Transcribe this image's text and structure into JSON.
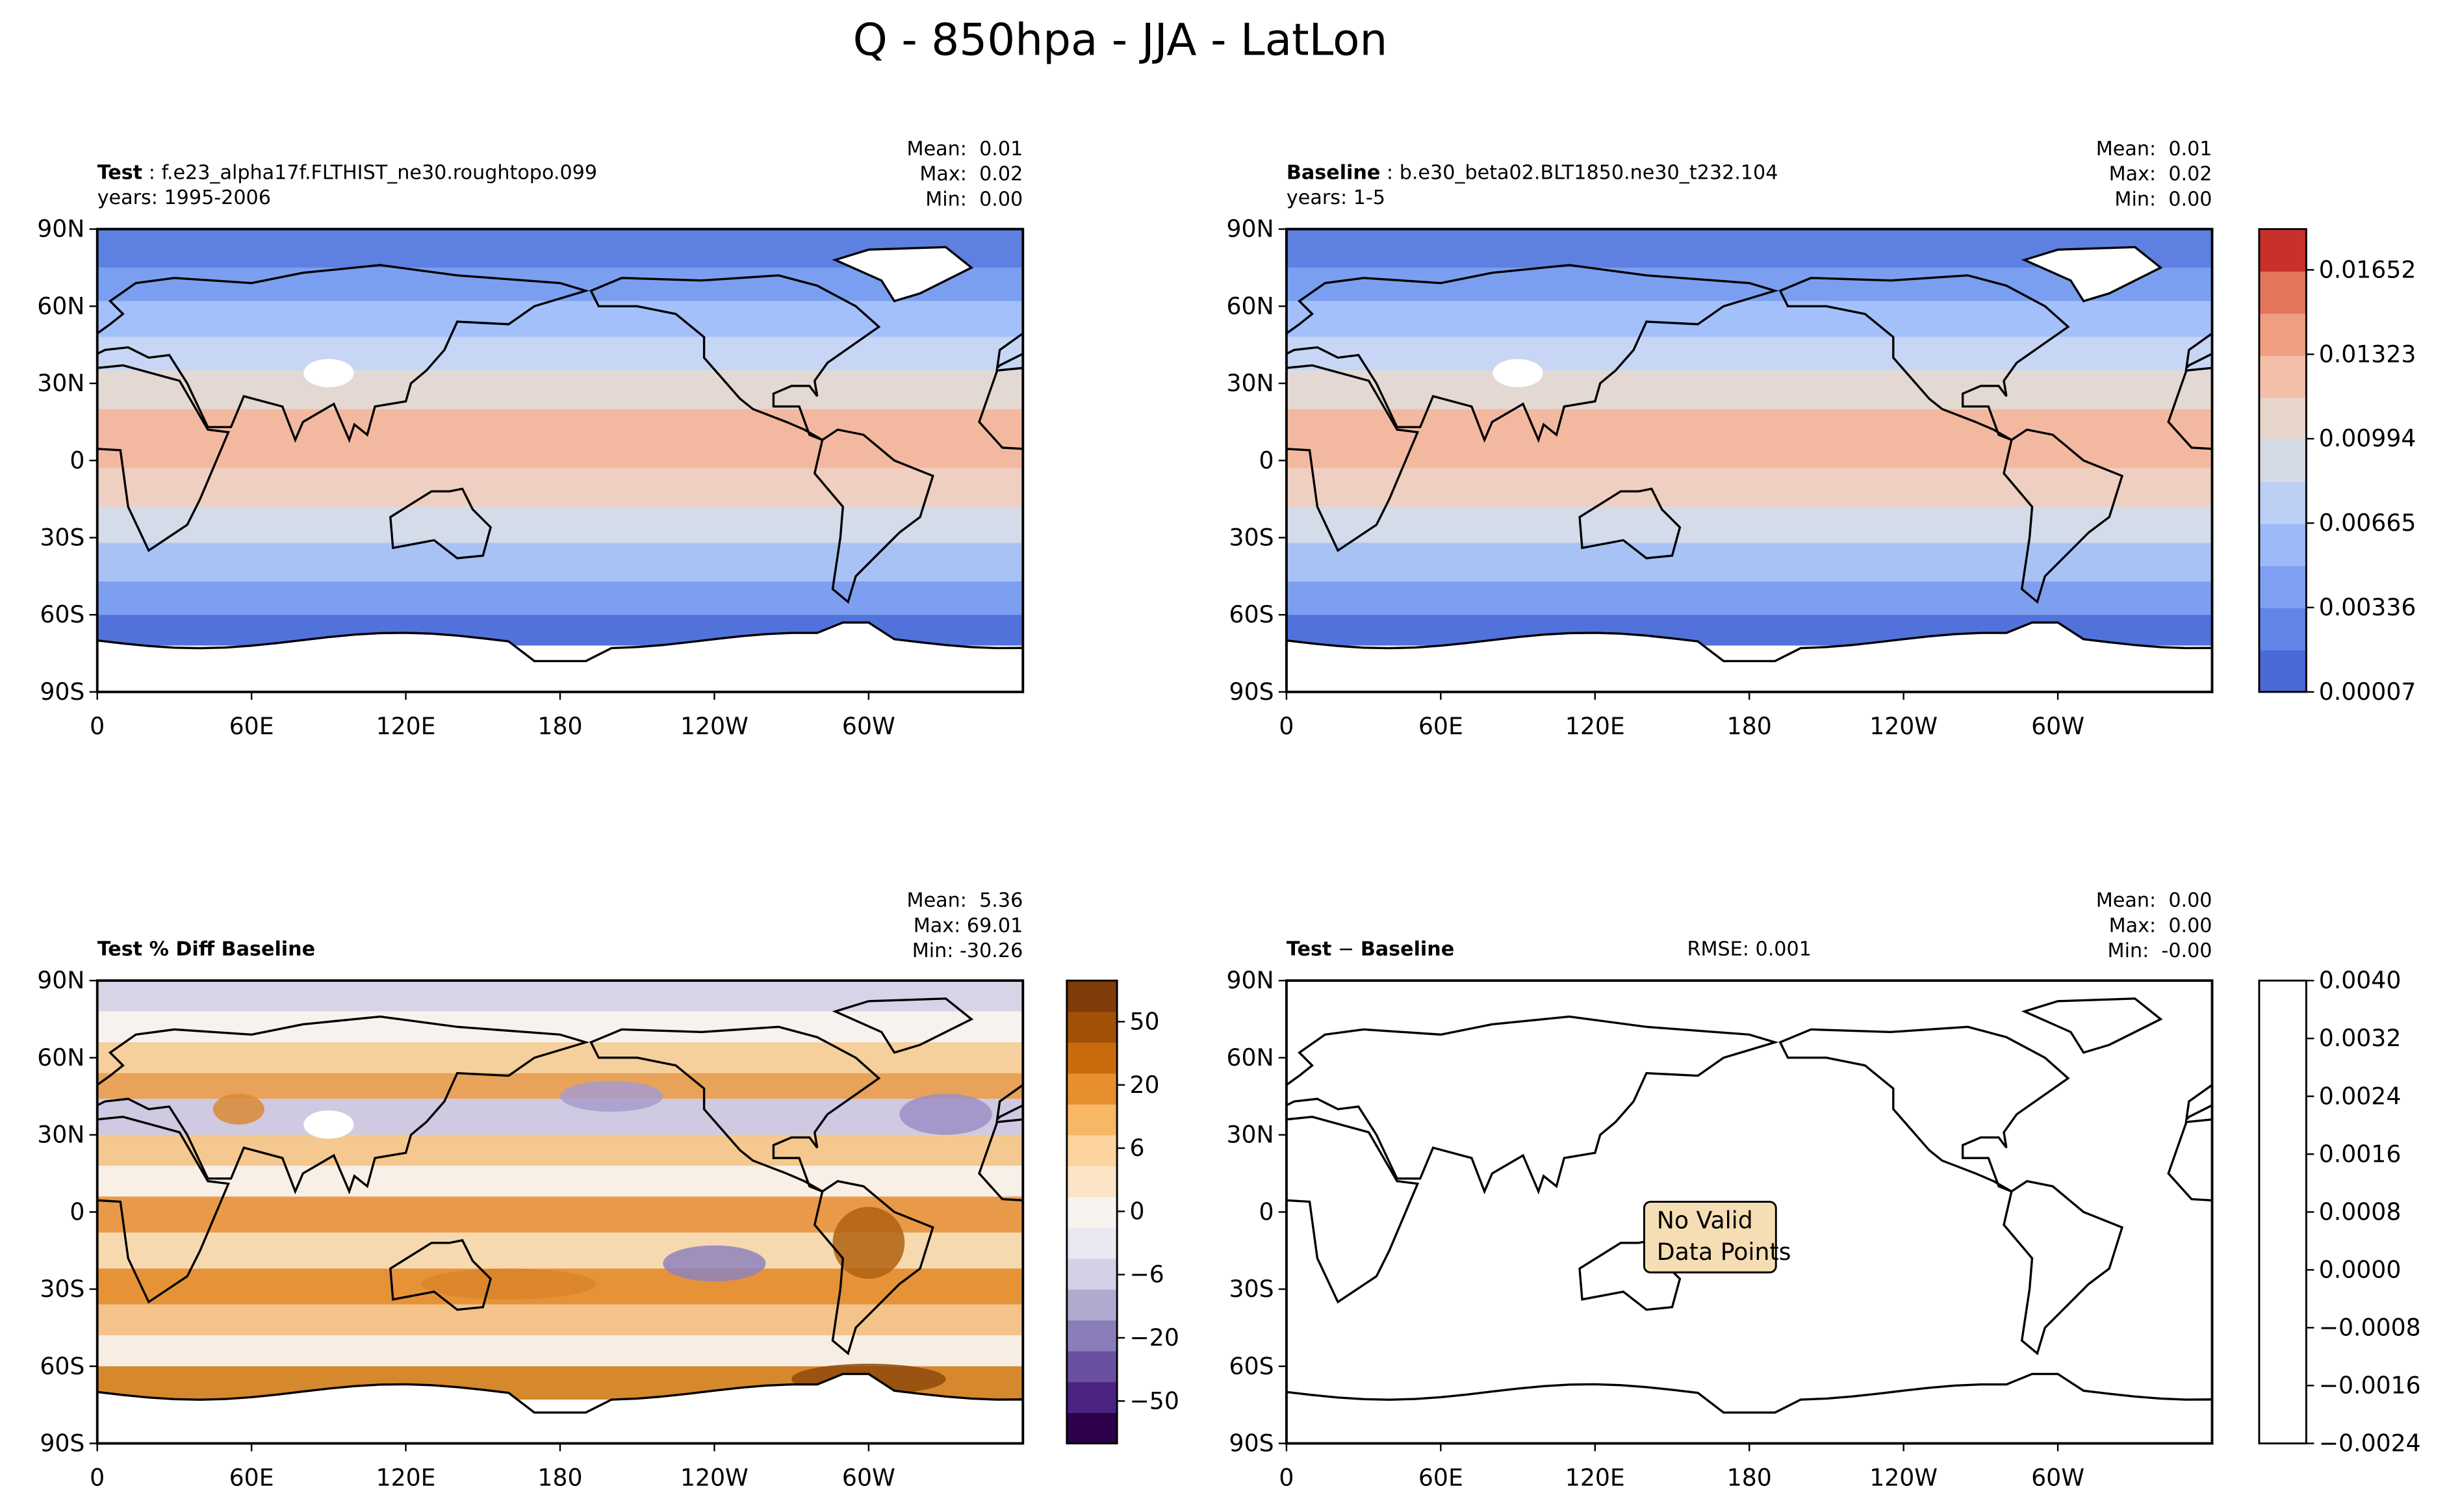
{
  "title": "Q - 850hpa - JJA - LatLon",
  "panels": [
    {
      "title": [
        {
          "text": "Test",
          "bold": true
        },
        {
          "text": " : f.e23_alpha17f.FLTHIST_ne30.roughtopo.099",
          "bold": false
        }
      ],
      "subtitle": "years: 1995-2006",
      "stats": [
        "Mean:  0.01",
        "Max:  0.02",
        "Min:  0.00"
      ]
    },
    {
      "title": [
        {
          "text": "Baseline",
          "bold": true
        },
        {
          "text": " : b.e30_beta02.BLT1850.ne30_t232.104",
          "bold": false
        }
      ],
      "subtitle": "years: 1-5",
      "stats": [
        "Mean:  0.01",
        "Max:  0.02",
        "Min:  0.00"
      ]
    },
    {
      "title": [
        {
          "text": "Test % Diff Baseline",
          "bold": true
        }
      ],
      "stats": [
        "Mean:  5.36",
        "Max: 69.01",
        "Min: -30.26"
      ]
    },
    {
      "title": [
        {
          "text": "Test",
          "bold": true
        },
        {
          "text": " − ",
          "bold": false
        },
        {
          "text": "Baseline",
          "bold": true
        }
      ],
      "rmse": "RMSE: 0.001",
      "stats": [
        "Mean:  0.00",
        "Max:  0.00",
        "Min:  -0.00"
      ],
      "annotation": [
        "No Valid",
        "Data Points"
      ]
    }
  ],
  "yticks": [
    "90N",
    "60N",
    "30N",
    "0",
    "30S",
    "60S",
    "90S"
  ],
  "xticks": [
    "0",
    "60E",
    "120E",
    "180",
    "120W",
    "60W"
  ],
  "colorbars": [
    {
      "ticks": [
        "0.00007",
        "0.00336",
        "0.00665",
        "0.00994",
        "0.01323",
        "0.01652"
      ],
      "colors": [
        "#4a6ad8",
        "#6085e6",
        "#7fa0f3",
        "#9dbaf8",
        "#bccff5",
        "#d5dbe6",
        "#e8d5cb",
        "#f3bfa8",
        "#f09e82",
        "#e3755b",
        "#c9302c"
      ]
    },
    {
      "ticks": [
        "−50",
        "−20",
        "−6",
        "0",
        "6",
        "20",
        "50"
      ],
      "colors": [
        "#2d004b",
        "#4b2383",
        "#6a50a0",
        "#8a7db8",
        "#b1aad0",
        "#d3d1e6",
        "#e9e8f1",
        "#f7f4f0",
        "#fbe5c6",
        "#fdd39f",
        "#f7b765",
        "#e88f2d",
        "#c96b0d",
        "#a15008",
        "#7f3b08"
      ]
    },
    {
      "ticks": [
        "0.0040",
        "0.0032",
        "0.0024",
        "0.0016",
        "0.0008",
        "0.0000",
        "−0.0008",
        "−0.0016",
        "−0.0024"
      ],
      "colors": [
        "#ffffff"
      ]
    }
  ]
}
